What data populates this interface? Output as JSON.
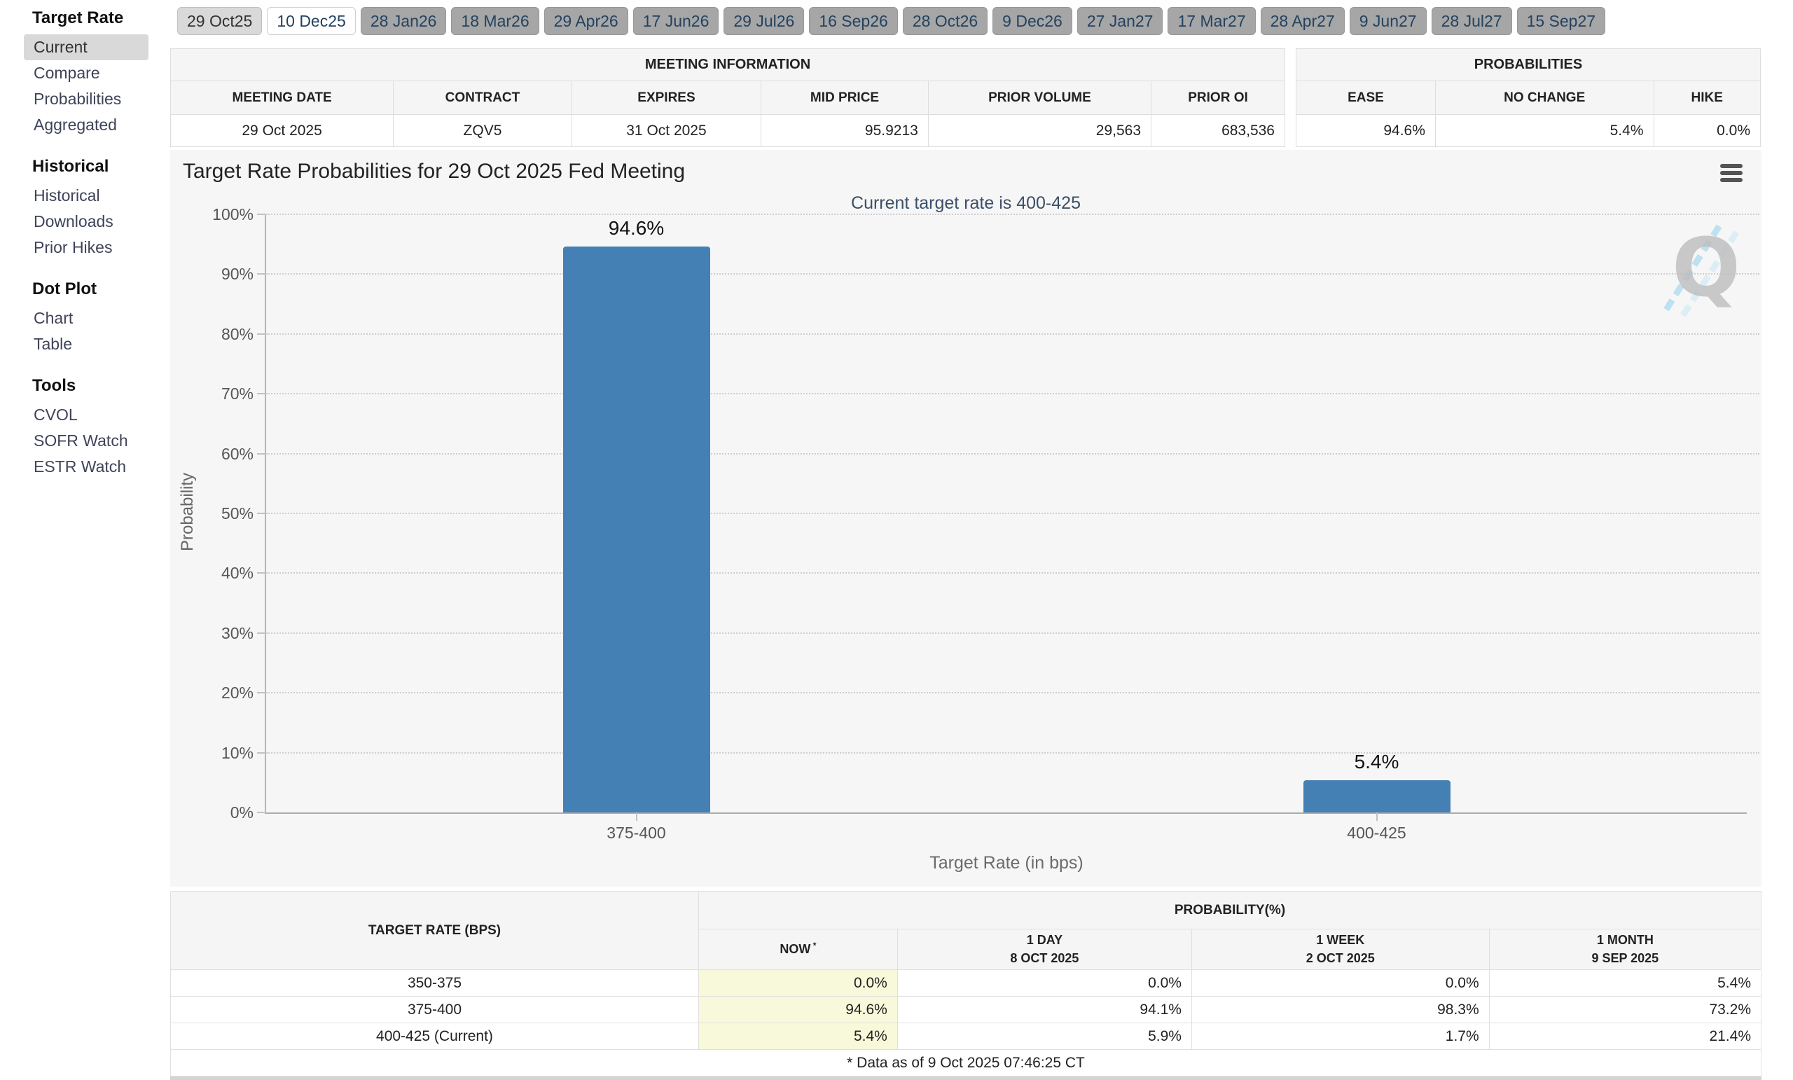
{
  "sidebar": {
    "sections": [
      {
        "title": "Target Rate",
        "items": [
          {
            "label": "Current",
            "selected": true
          },
          {
            "label": "Compare",
            "selected": false
          },
          {
            "label": "Probabilities",
            "selected": false
          },
          {
            "label": "Aggregated",
            "selected": false
          }
        ]
      },
      {
        "title": "Historical",
        "items": [
          {
            "label": "Historical",
            "selected": false
          },
          {
            "label": "Downloads",
            "selected": false
          },
          {
            "label": "Prior Hikes",
            "selected": false
          }
        ]
      },
      {
        "title": "Dot Plot",
        "items": [
          {
            "label": "Chart",
            "selected": false
          },
          {
            "label": "Table",
            "selected": false
          }
        ]
      },
      {
        "title": "Tools",
        "items": [
          {
            "label": "CVOL",
            "selected": false
          },
          {
            "label": "SOFR Watch",
            "selected": false
          },
          {
            "label": "ESTR Watch",
            "selected": false
          }
        ]
      }
    ]
  },
  "tabs": [
    {
      "label": "29 Oct25",
      "state": "past"
    },
    {
      "label": "10 Dec25",
      "state": "selected"
    },
    {
      "label": "28 Jan26",
      "state": "default"
    },
    {
      "label": "18 Mar26",
      "state": "default"
    },
    {
      "label": "29 Apr26",
      "state": "default"
    },
    {
      "label": "17 Jun26",
      "state": "default"
    },
    {
      "label": "29 Jul26",
      "state": "default"
    },
    {
      "label": "16 Sep26",
      "state": "default"
    },
    {
      "label": "28 Oct26",
      "state": "default"
    },
    {
      "label": "9 Dec26",
      "state": "default"
    },
    {
      "label": "27 Jan27",
      "state": "default"
    },
    {
      "label": "17 Mar27",
      "state": "default"
    },
    {
      "label": "28 Apr27",
      "state": "default"
    },
    {
      "label": "9 Jun27",
      "state": "default"
    },
    {
      "label": "28 Jul27",
      "state": "default"
    },
    {
      "label": "15 Sep27",
      "state": "default"
    }
  ],
  "meeting_info": {
    "title": "MEETING INFORMATION",
    "headers": [
      "MEETING DATE",
      "CONTRACT",
      "EXPIRES",
      "MID PRICE",
      "PRIOR VOLUME",
      "PRIOR OI"
    ],
    "values": [
      "29 Oct 2025",
      "ZQV5",
      "31 Oct 2025",
      "95.9213",
      "29,563",
      "683,536"
    ]
  },
  "probabilities": {
    "title": "PROBABILITIES",
    "headers": [
      "EASE",
      "NO CHANGE",
      "HIKE"
    ],
    "values": [
      "94.6%",
      "5.4%",
      "0.0%"
    ]
  },
  "chart_data": {
    "type": "bar",
    "title": "Target Rate Probabilities for 29 Oct 2025 Fed Meeting",
    "subtitle": "Current target rate is 400-425",
    "categories": [
      "375-400",
      "400-425"
    ],
    "values": [
      94.6,
      5.4
    ],
    "value_labels": [
      "94.6%",
      "5.4%"
    ],
    "xlabel": "Target Rate (in bps)",
    "ylabel": "Probability",
    "ylim": [
      0,
      100
    ],
    "ytick_step": 10,
    "ytick_suffix": "%",
    "grid": "dotted-horizontal",
    "legend": false,
    "bar_color": "#4580b4"
  },
  "prob_table": {
    "col1_header": "TARGET RATE (BPS)",
    "group_header": "PROBABILITY(%)",
    "sub_headers": [
      {
        "line1": "NOW",
        "sup": "*",
        "line2": ""
      },
      {
        "line1": "1 DAY",
        "sup": "",
        "line2": "8 OCT 2025"
      },
      {
        "line1": "1 WEEK",
        "sup": "",
        "line2": "2 OCT 2025"
      },
      {
        "line1": "1 MONTH",
        "sup": "",
        "line2": "9 SEP 2025"
      }
    ],
    "rows": [
      {
        "rate": "350-375",
        "values": [
          "0.0%",
          "0.0%",
          "0.0%",
          "5.4%"
        ]
      },
      {
        "rate": "375-400",
        "values": [
          "94.6%",
          "94.1%",
          "98.3%",
          "73.2%"
        ]
      },
      {
        "rate": "400-425 (Current)",
        "values": [
          "5.4%",
          "5.9%",
          "1.7%",
          "21.4%"
        ]
      }
    ],
    "footnote": "* Data as of 9 Oct 2025 07:46:25 CT"
  },
  "icons": {
    "chart_menu": "hamburger-icon",
    "watermark": "quikstrike-q-logo"
  },
  "colors": {
    "bar": "#4580b4",
    "now_column_bg": "#f8f8da",
    "tab_bg": "#a6a6a6",
    "past_tab_bg": "#d9d9d9",
    "selected_tab_bg": "#ffffff",
    "sidebar_selected_bg": "#d9d9d9",
    "panel_bg": "#f6f6f6",
    "subtitle_text": "#3c5068",
    "header_bg": "#f5f5f5"
  }
}
